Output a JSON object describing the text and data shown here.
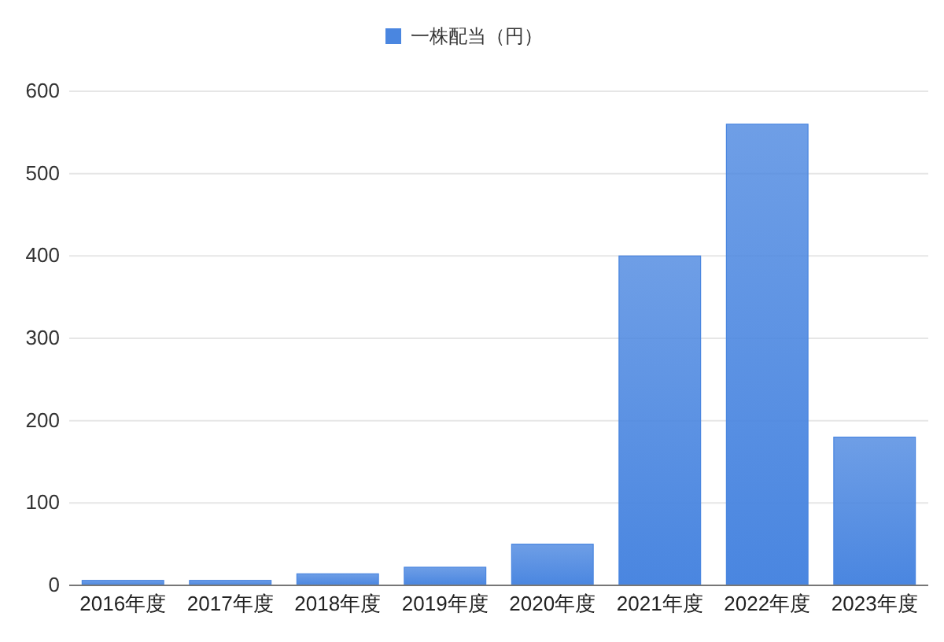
{
  "chart_data": {
    "type": "bar",
    "categories": [
      "2016年度",
      "2017年度",
      "2018年度",
      "2019年度",
      "2020年度",
      "2021年度",
      "2022年度",
      "2023年度"
    ],
    "series": [
      {
        "name": "一株配当（円）",
        "color": "#4a86e0",
        "values": [
          6,
          6,
          14,
          22,
          50,
          400,
          560,
          180
        ]
      }
    ],
    "ylim": [
      0,
      600
    ],
    "yticks": [
      0,
      100,
      200,
      300,
      400,
      500,
      600
    ],
    "grid": "y",
    "legend": "top"
  }
}
